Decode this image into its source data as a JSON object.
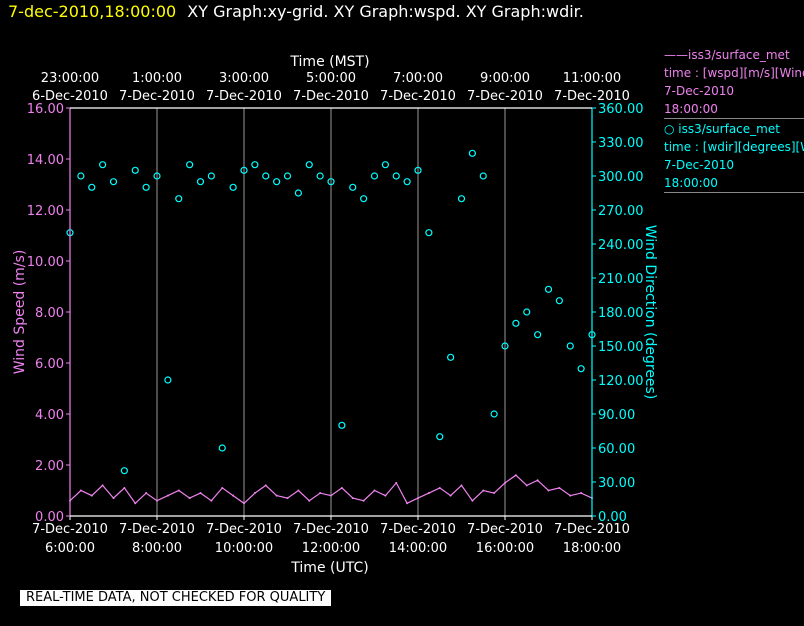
{
  "header": {
    "date": "7-dec-2010,18:00:00",
    "titles": "XY Graph:xy-grid.  XY Graph:wspd.  XY Graph:wdir."
  },
  "legend": {
    "series1": {
      "line1": "——iss3/surface_met",
      "line2": "time : [wspd][m/s][Wind",
      "line3": "7-Dec-2010",
      "line4": "18:00:00"
    },
    "series2": {
      "line1": "○ iss3/surface_met",
      "line2": "time : [wdir][degrees][W",
      "line3": "7-Dec-2010",
      "line4": "18:00:00"
    }
  },
  "footer_note": "REAL-TIME DATA, NOT CHECKED FOR QUALITY",
  "colors": {
    "wspd": "#ee82ee",
    "wdir": "#00ffff",
    "background": "#000000",
    "grid": "#ffffff",
    "header_date": "#ffff00"
  },
  "chart_data": {
    "type": "line",
    "title": "XY Graph:xy-grid.  XY Graph:wspd.  XY Graph:wdir.",
    "xlabel_bottom": "Time (UTC)",
    "xlabel_top": "Time (MST)",
    "ylabel_left": "Wind Speed (m/s)",
    "ylabel_right": "Wind Direction (degrees)",
    "x_range": [
      "2010-12-07 06:00",
      "2010-12-07 18:00"
    ],
    "ylim_left": [
      0,
      16
    ],
    "ylim_right": [
      0,
      360
    ],
    "grid": true,
    "bottom_ticks": [
      {
        "date": "7-Dec-2010",
        "time": "6:00:00"
      },
      {
        "date": "7-Dec-2010",
        "time": "8:00:00"
      },
      {
        "date": "7-Dec-2010",
        "time": "10:00:00"
      },
      {
        "date": "7-Dec-2010",
        "time": "12:00:00"
      },
      {
        "date": "7-Dec-2010",
        "time": "14:00:00"
      },
      {
        "date": "7-Dec-2010",
        "time": "16:00:00"
      },
      {
        "date": "7-Dec-2010",
        "time": "18:00:00"
      }
    ],
    "top_ticks": [
      {
        "time": "23:00:00",
        "date": "6-Dec-2010"
      },
      {
        "time": "1:00:00",
        "date": "7-Dec-2010"
      },
      {
        "time": "3:00:00",
        "date": "7-Dec-2010"
      },
      {
        "time": "5:00:00",
        "date": "7-Dec-2010"
      },
      {
        "time": "7:00:00",
        "date": "7-Dec-2010"
      },
      {
        "time": "9:00:00",
        "date": "7-Dec-2010"
      },
      {
        "time": "11:00:00",
        "date": "7-Dec-2010"
      }
    ],
    "left_ticks": [
      "0.00",
      "2.00",
      "4.00",
      "6.00",
      "8.00",
      "10.00",
      "12.00",
      "14.00",
      "16.00"
    ],
    "right_ticks": [
      "0.00",
      "30.00",
      "60.00",
      "90.00",
      "120.00",
      "150.00",
      "180.00",
      "210.00",
      "240.00",
      "270.00",
      "300.00",
      "330.00",
      "360.00"
    ],
    "series": [
      {
        "name": "iss3/surface_met time : [wspd][m/s]",
        "axis": "left",
        "style": "line",
        "x_hours_utc": [
          6.0,
          6.25,
          6.5,
          6.75,
          7.0,
          7.25,
          7.5,
          7.75,
          8.0,
          8.25,
          8.5,
          8.75,
          9.0,
          9.25,
          9.5,
          9.75,
          10.0,
          10.25,
          10.5,
          10.75,
          11.0,
          11.25,
          11.5,
          11.75,
          12.0,
          12.25,
          12.5,
          12.75,
          13.0,
          13.25,
          13.5,
          13.75,
          14.0,
          14.25,
          14.5,
          14.75,
          15.0,
          15.25,
          15.5,
          15.75,
          16.0,
          16.25,
          16.5,
          16.75,
          17.0,
          17.25,
          17.5,
          17.75,
          18.0
        ],
        "values": [
          0.6,
          1.0,
          0.8,
          1.2,
          0.7,
          1.1,
          0.5,
          0.9,
          0.6,
          0.8,
          1.0,
          0.7,
          0.9,
          0.6,
          1.1,
          0.8,
          0.5,
          0.9,
          1.2,
          0.8,
          0.7,
          1.0,
          0.6,
          0.9,
          0.8,
          1.1,
          0.7,
          0.6,
          1.0,
          0.8,
          1.3,
          0.5,
          0.7,
          0.9,
          1.1,
          0.8,
          1.2,
          0.6,
          1.0,
          0.9,
          1.3,
          1.6,
          1.2,
          1.4,
          1.0,
          1.1,
          0.8,
          0.9,
          0.7
        ]
      },
      {
        "name": "iss3/surface_met time : [wdir][degrees]",
        "axis": "right",
        "style": "markers",
        "x_hours_utc": [
          6.0,
          6.25,
          6.5,
          6.75,
          7.0,
          7.25,
          7.5,
          7.75,
          8.0,
          8.25,
          8.5,
          8.75,
          9.0,
          9.25,
          9.5,
          9.75,
          10.0,
          10.25,
          10.5,
          10.75,
          11.0,
          11.25,
          11.5,
          11.75,
          12.0,
          12.25,
          12.5,
          12.75,
          13.0,
          13.25,
          13.5,
          13.75,
          14.0,
          14.25,
          14.5,
          14.75,
          15.0,
          15.25,
          15.5,
          15.75,
          16.0,
          16.25,
          16.5,
          16.75,
          17.0,
          17.25,
          17.5,
          17.75,
          18.0
        ],
        "values": [
          250,
          300,
          290,
          310,
          295,
          40,
          305,
          290,
          300,
          120,
          280,
          310,
          295,
          300,
          60,
          290,
          305,
          310,
          300,
          295,
          300,
          285,
          310,
          300,
          295,
          80,
          290,
          280,
          300,
          310,
          300,
          295,
          305,
          250,
          70,
          140,
          280,
          320,
          300,
          90,
          150,
          170,
          180,
          160,
          200,
          190,
          150,
          130,
          160
        ]
      }
    ]
  }
}
